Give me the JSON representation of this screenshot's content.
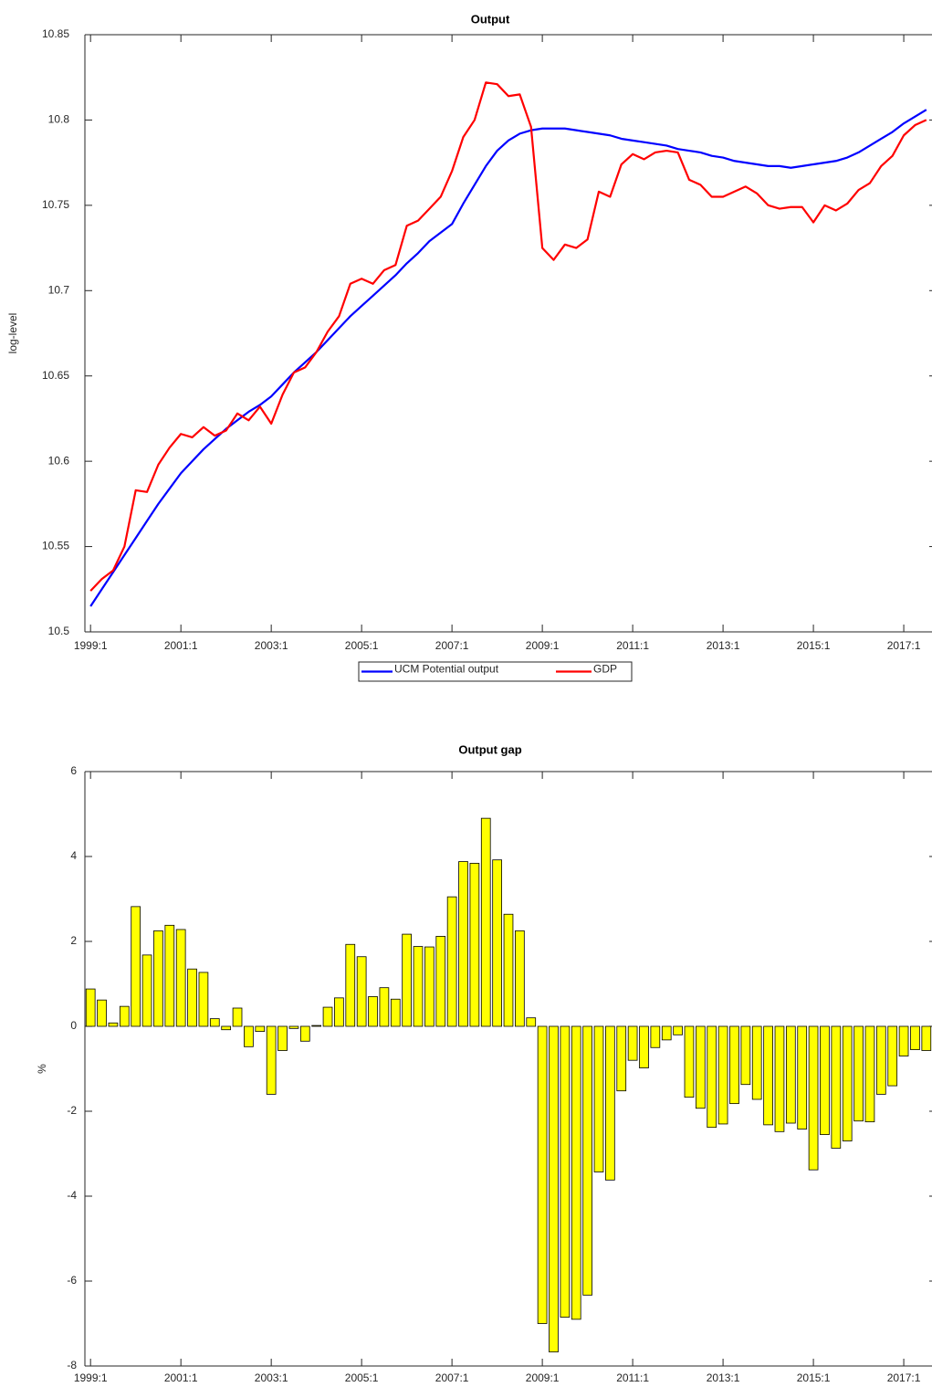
{
  "chart_data": [
    {
      "type": "line",
      "title": "Output",
      "y_label": "log-level",
      "categories": [
        "1999:1",
        null,
        null,
        null,
        null,
        null,
        null,
        null,
        "2001:1",
        null,
        null,
        null,
        null,
        null,
        null,
        null,
        "2003:1",
        null,
        null,
        null,
        null,
        null,
        null,
        null,
        "2005:1",
        null,
        null,
        null,
        null,
        null,
        null,
        null,
        "2007:1",
        null,
        null,
        null,
        null,
        null,
        null,
        null,
        "2009:1",
        null,
        null,
        null,
        null,
        null,
        null,
        null,
        "2011:1",
        null,
        null,
        null,
        null,
        null,
        null,
        null,
        "2013:1",
        null,
        null,
        null,
        null,
        null,
        null,
        null,
        "2015:1",
        null,
        null,
        null,
        null,
        null,
        null,
        null,
        "2017:1",
        null,
        null
      ],
      "series": [
        {
          "name": "UCM Potential output",
          "color": "#0000ff",
          "values": [
            10.515,
            10.525,
            10.535,
            10.545,
            10.555,
            10.565,
            10.575,
            10.584,
            10.593,
            10.6,
            10.607,
            10.613,
            10.619,
            10.624,
            10.629,
            10.633,
            10.638,
            10.645,
            10.652,
            10.658,
            10.664,
            10.671,
            10.678,
            10.685,
            10.691,
            10.697,
            10.703,
            10.709,
            10.716,
            10.722,
            10.729,
            10.734,
            10.739,
            10.751,
            10.762,
            10.773,
            10.782,
            10.788,
            10.792,
            10.794,
            10.795,
            10.795,
            10.795,
            10.794,
            10.793,
            10.792,
            10.791,
            10.789,
            10.788,
            10.787,
            10.786,
            10.785,
            10.783,
            10.782,
            10.781,
            10.779,
            10.778,
            10.776,
            10.775,
            10.774,
            10.773,
            10.773,
            10.772,
            10.773,
            10.774,
            10.775,
            10.776,
            10.778,
            10.781,
            10.785,
            10.789,
            10.793,
            10.798,
            10.802,
            10.806
          ]
        },
        {
          "name": "GDP",
          "color": "#ff0000",
          "values": [
            10.524,
            10.531,
            10.536,
            10.55,
            10.583,
            10.582,
            10.598,
            10.608,
            10.616,
            10.614,
            10.62,
            10.615,
            10.618,
            10.628,
            10.624,
            10.632,
            10.622,
            10.639,
            10.652,
            10.655,
            10.664,
            10.676,
            10.685,
            10.704,
            10.707,
            10.704,
            10.712,
            10.715,
            10.738,
            10.741,
            10.748,
            10.755,
            10.77,
            10.79,
            10.8,
            10.822,
            10.821,
            10.814,
            10.815,
            10.796,
            10.725,
            10.718,
            10.727,
            10.725,
            10.73,
            10.758,
            10.755,
            10.774,
            10.78,
            10.777,
            10.781,
            10.782,
            10.781,
            10.765,
            10.762,
            10.755,
            10.755,
            10.758,
            10.761,
            10.757,
            10.75,
            10.748,
            10.749,
            10.749,
            10.74,
            10.75,
            10.747,
            10.751,
            10.759,
            10.763,
            10.773,
            10.779,
            10.791,
            10.797,
            10.8
          ]
        }
      ],
      "ylim": [
        10.5,
        10.85
      ],
      "yticks": [
        10.5,
        10.55,
        10.6,
        10.65,
        10.7,
        10.75,
        10.8,
        10.85
      ],
      "legend": "bottom"
    },
    {
      "type": "bar",
      "title": "Output gap",
      "y_label": "%",
      "categories": [
        "1999:1",
        null,
        null,
        null,
        null,
        null,
        null,
        null,
        "2001:1",
        null,
        null,
        null,
        null,
        null,
        null,
        null,
        "2003:1",
        null,
        null,
        null,
        null,
        null,
        null,
        null,
        "2005:1",
        null,
        null,
        null,
        null,
        null,
        null,
        null,
        "2007:1",
        null,
        null,
        null,
        null,
        null,
        null,
        null,
        "2009:1",
        null,
        null,
        null,
        null,
        null,
        null,
        null,
        "2011:1",
        null,
        null,
        null,
        null,
        null,
        null,
        null,
        "2013:1",
        null,
        null,
        null,
        null,
        null,
        null,
        null,
        "2015:1",
        null,
        null,
        null,
        null,
        null,
        null,
        null,
        "2017:1",
        null,
        null
      ],
      "values": [
        0.88,
        0.62,
        0.08,
        0.47,
        2.82,
        1.68,
        2.25,
        2.38,
        2.28,
        1.35,
        1.27,
        0.18,
        -0.08,
        0.43,
        -0.48,
        -0.12,
        -1.6,
        -0.57,
        -0.05,
        -0.35,
        0.02,
        0.45,
        0.67,
        1.93,
        1.64,
        0.7,
        0.91,
        0.64,
        2.17,
        1.88,
        1.87,
        2.12,
        3.05,
        3.88,
        3.84,
        4.9,
        3.92,
        2.64,
        2.25,
        0.2,
        -7.0,
        -7.67,
        -6.85,
        -6.9,
        -6.33,
        -3.43,
        -3.62,
        -1.52,
        -0.8,
        -0.98,
        -0.5,
        -0.32,
        -0.2,
        -1.67,
        -1.93,
        -2.38,
        -2.3,
        -1.82,
        -1.37,
        -1.72,
        -2.32,
        -2.48,
        -2.28,
        -2.42,
        -3.38,
        -2.55,
        -2.87,
        -2.7,
        -2.23,
        -2.25,
        -1.6,
        -1.4,
        -0.7,
        -0.55,
        -0.57
      ],
      "color": "#ffff00",
      "ylim": [
        -8,
        6
      ],
      "yticks": [
        -8,
        -6,
        -4,
        -2,
        0,
        2,
        4,
        6
      ]
    }
  ]
}
